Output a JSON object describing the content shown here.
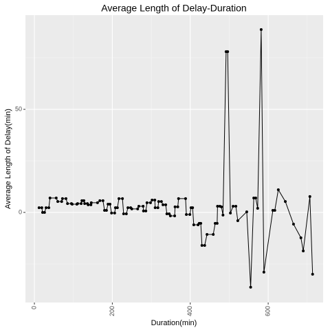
{
  "chart_data": {
    "type": "line",
    "title": "Average Length of Delay-Duration",
    "x_label": "Duration(min)",
    "y_label": "Average Length of Delay(min)",
    "x": [
      12,
      19,
      21,
      26,
      30,
      37,
      40,
      56,
      60,
      70,
      72,
      81,
      85,
      95,
      97,
      109,
      111,
      120,
      122,
      127,
      129,
      136,
      138,
      145,
      146,
      162,
      168,
      176,
      180,
      185,
      189,
      194,
      198,
      206,
      208,
      213,
      217,
      226,
      229,
      236,
      240,
      247,
      250,
      265,
      268,
      279,
      280,
      286,
      289,
      298,
      302,
      309,
      310,
      317,
      319,
      326,
      330,
      337,
      340,
      346,
      349,
      360,
      361,
      368,
      370,
      388,
      390,
      399,
      402,
      406,
      409,
      420,
      423,
      427,
      430,
      437,
      443,
      459,
      464,
      469,
      470,
      476,
      480,
      484,
      492,
      496,
      503,
      510,
      517,
      522,
      545,
      555,
      563,
      568,
      573,
      582,
      589,
      612,
      617,
      626,
      644,
      665,
      684,
      690,
      707,
      714
    ],
    "series": [
      {
        "name": "delay",
        "color": "#000000",
        "values": [
          2.3,
          2.3,
          0,
          0,
          2.3,
          2.3,
          7,
          7,
          5.3,
          5.3,
          6.7,
          6.7,
          4.3,
          4.3,
          4,
          4,
          4.3,
          4.3,
          5.7,
          5.7,
          4.3,
          4.3,
          3.7,
          3.7,
          4.7,
          4.7,
          5.7,
          5.7,
          1,
          1,
          4,
          4,
          -0.3,
          -0.3,
          2.3,
          2.3,
          6.7,
          6.7,
          -0.7,
          -0.7,
          2.3,
          2.3,
          1.7,
          1.7,
          3,
          3,
          0.7,
          0.7,
          4.7,
          4.7,
          6,
          6,
          2.3,
          2.3,
          5.3,
          5.3,
          3.7,
          3.7,
          -0.7,
          -0.7,
          -1.7,
          -1.7,
          2.7,
          2.7,
          6.7,
          6.7,
          -1,
          -1,
          2.3,
          2.3,
          -6,
          -6,
          -5.3,
          -5.3,
          -16,
          -16,
          -10.7,
          -10.7,
          -5.3,
          -5.3,
          3,
          3,
          2.7,
          -1.3,
          78,
          78,
          -0.3,
          3,
          3,
          -4,
          0.3,
          -36.3,
          7,
          7,
          2,
          88.7,
          -29,
          1,
          1,
          11,
          5.3,
          -5.7,
          -12.3,
          -18.7,
          7.7,
          -30
        ]
      }
    ],
    "xlim": [
      -23,
      741
    ],
    "ylim": [
      -43.7,
      95.7
    ],
    "xticks": [
      0,
      200,
      400,
      600
    ],
    "yticks": [
      0,
      50
    ],
    "grid": true
  }
}
